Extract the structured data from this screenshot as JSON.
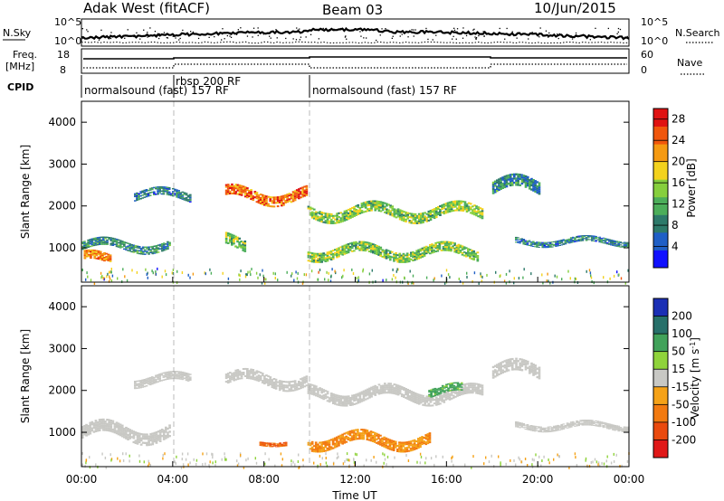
{
  "header": {
    "station": "Adak West (fitACF)",
    "beam": "Beam 03",
    "date": "10/Jun/2015"
  },
  "top_panels": {
    "nsky_label": "N.Sky",
    "nsky_left_ticks": [
      "10^5",
      "10^0"
    ],
    "nsearch_label": "N.Search",
    "nsearch_right_ticks": [
      "10^5",
      "10^0"
    ],
    "freq_label": "Freq.",
    "freq_unit": "[MHz]",
    "freq_ticks": [
      "18",
      "8"
    ],
    "nave_label": "Nave",
    "nave_ticks": [
      "60",
      "0"
    ],
    "cpid_label": "CPID",
    "cpid_segments": [
      {
        "label": "normalsound (fast) 157 RF",
        "start": 0,
        "end": 9.83
      },
      {
        "label": "rbsp 200 RF",
        "start": 4.0,
        "end": 4.0
      },
      {
        "label": "normalsound (fast) 157 RF",
        "start": 9.83,
        "end": 24
      }
    ]
  },
  "chart_data": [
    {
      "type": "heatmap",
      "panel": "power",
      "xlabel": "Time UT",
      "ylabel": "Slant Range [km]",
      "xlim": [
        0,
        24
      ],
      "ylim": [
        180,
        4500
      ],
      "x_ticks": [
        "00:00",
        "04:00",
        "08:00",
        "12:00",
        "16:00",
        "20:00",
        "00:00"
      ],
      "y_ticks": [
        "1000",
        "2000",
        "3000",
        "4000"
      ],
      "colorbar": {
        "label": "Power [dB]",
        "ticks": [
          "4",
          "8",
          "12",
          "16",
          "20",
          "24",
          "28"
        ],
        "range": [
          0,
          30
        ],
        "colors": [
          "#1010ff",
          "#1f5fc6",
          "#2d7a6a",
          "#4cae5a",
          "#86cf3d",
          "#f3d21d",
          "#f59a12",
          "#f0560c",
          "#e01212"
        ]
      },
      "echo_regions": [
        {
          "t0": 0.0,
          "t1": 3.9,
          "r_center": 1050,
          "r_width": 200,
          "power": 9
        },
        {
          "t0": 0.1,
          "t1": 1.3,
          "r_center": 720,
          "r_width": 220,
          "power": 22
        },
        {
          "t0": 2.3,
          "t1": 4.8,
          "r_center": 2250,
          "r_width": 200,
          "power": 8
        },
        {
          "t0": 6.3,
          "t1": 9.9,
          "r_center": 2250,
          "r_width": 260,
          "power": 24
        },
        {
          "t0": 6.3,
          "t1": 7.2,
          "r_center": 1100,
          "r_width": 280,
          "power": 14
        },
        {
          "t0": 9.9,
          "t1": 17.6,
          "r_center": 1850,
          "r_width": 260,
          "power": 14
        },
        {
          "t0": 9.9,
          "t1": 17.4,
          "r_center": 900,
          "r_width": 240,
          "power": 14
        },
        {
          "t0": 18.0,
          "t1": 20.1,
          "r_center": 2450,
          "r_width": 300,
          "power": 9
        },
        {
          "t0": 19.0,
          "t1": 24.0,
          "r_center": 1150,
          "r_width": 140,
          "power": 8
        }
      ]
    },
    {
      "type": "heatmap",
      "panel": "velocity",
      "xlabel": "Time UT",
      "ylabel": "Slant Range [km]",
      "xlim": [
        0,
        24
      ],
      "ylim": [
        180,
        4500
      ],
      "x_ticks": [
        "00:00",
        "04:00",
        "08:00",
        "12:00",
        "16:00",
        "20:00",
        "00:00"
      ],
      "y_ticks": [
        "1000",
        "2000",
        "3000",
        "4000"
      ],
      "colorbar": {
        "label": "Velocity [m s",
        "label_superscript": "-1",
        "label_close": "]",
        "ticks": [
          "200",
          "100",
          "50",
          "15",
          "-15",
          "-50",
          "-100",
          "-200"
        ],
        "colors": [
          "#1b2fb5",
          "#27706a",
          "#41a25a",
          "#8fd33b",
          "#c8c8c4",
          "#f5a218",
          "#f27a10",
          "#ea4a0e",
          "#e01818"
        ]
      },
      "echo_regions": [
        {
          "t0": 0.0,
          "t1": 3.9,
          "r_center": 1000,
          "r_width": 300,
          "velocity": 0
        },
        {
          "t0": 2.3,
          "t1": 4.8,
          "r_center": 2250,
          "r_width": 200,
          "velocity": 0
        },
        {
          "t0": 6.3,
          "t1": 9.9,
          "r_center": 2250,
          "r_width": 260,
          "velocity": 0
        },
        {
          "t0": 7.8,
          "t1": 9.0,
          "r_center": 760,
          "r_width": 100,
          "velocity": -100
        },
        {
          "t0": 9.9,
          "t1": 17.6,
          "r_center": 1900,
          "r_width": 260,
          "velocity": 0
        },
        {
          "t0": 15.2,
          "t1": 16.7,
          "r_center": 1980,
          "r_width": 200,
          "velocity": 60
        },
        {
          "t0": 9.9,
          "t1": 15.3,
          "r_center": 800,
          "r_width": 260,
          "velocity": -50
        },
        {
          "t0": 18.0,
          "t1": 20.1,
          "r_center": 2450,
          "r_width": 300,
          "velocity": 0
        },
        {
          "t0": 19.0,
          "t1": 24.0,
          "r_center": 1150,
          "r_width": 140,
          "velocity": 0
        }
      ]
    }
  ]
}
